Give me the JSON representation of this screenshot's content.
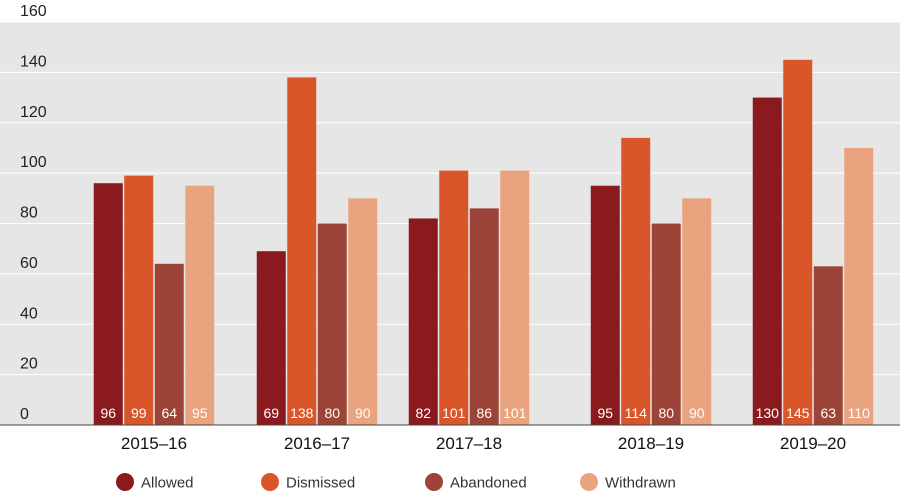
{
  "chart_data": {
    "type": "bar",
    "title": "",
    "xlabel": "",
    "ylabel": "",
    "ylim": [
      0,
      160
    ],
    "yticks": [
      "0",
      "20",
      "40",
      "60",
      "80",
      "100",
      "120",
      "140",
      "160"
    ],
    "grid": true,
    "legend_position": "bottom",
    "categories": [
      "2015–16",
      "2016–17",
      "2017–18",
      "2018–19",
      "2019–20"
    ],
    "series": [
      {
        "name": "Allowed",
        "color": "#8b1a1e",
        "values": [
          96,
          69,
          82,
          95,
          130
        ]
      },
      {
        "name": "Dismissed",
        "color": "#d9552a",
        "values": [
          99,
          138,
          101,
          114,
          145
        ]
      },
      {
        "name": "Abandoned",
        "color": "#9c4437",
        "values": [
          64,
          80,
          86,
          80,
          63
        ]
      },
      {
        "name": "Withdrawn",
        "color": "#eaa37f",
        "values": [
          95,
          90,
          101,
          90,
          110
        ]
      }
    ]
  },
  "colors": {
    "plot_background": "#e6e6e6",
    "gridline": "#ffffff"
  }
}
